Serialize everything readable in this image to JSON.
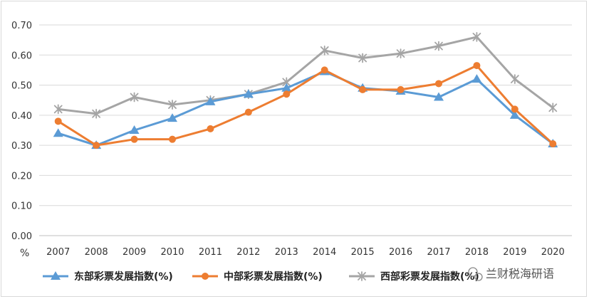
{
  "chart_data": {
    "type": "line",
    "title": "",
    "xlabel": "",
    "ylabel": "",
    "y_unit": "%",
    "x": [
      "2007",
      "2008",
      "2009",
      "2010",
      "2011",
      "2012",
      "2013",
      "2014",
      "2015",
      "2016",
      "2017",
      "2018",
      "2019",
      "2020"
    ],
    "ylim": [
      0,
      0.7
    ],
    "yticks": [
      "0.00",
      "0.10",
      "0.20",
      "0.30",
      "0.40",
      "0.50",
      "0.60",
      "0.70"
    ],
    "grid": true,
    "legend_position": "bottom",
    "series": [
      {
        "name": "东部彩票发展指数(%)",
        "color": "#5b9bd5",
        "marker": "triangle",
        "values": [
          0.34,
          0.3,
          0.35,
          0.39,
          0.445,
          0.47,
          0.49,
          0.545,
          0.49,
          0.48,
          0.46,
          0.52,
          0.4,
          0.305
        ]
      },
      {
        "name": "中部彩票发展指数(%)",
        "color": "#ed7d31",
        "marker": "circle",
        "values": [
          0.38,
          0.3,
          0.32,
          0.32,
          0.355,
          0.41,
          0.47,
          0.55,
          0.485,
          0.485,
          0.505,
          0.565,
          0.42,
          0.305
        ]
      },
      {
        "name": "西部彩票发展指数(%)",
        "color": "#a5a5a5",
        "marker": "star",
        "values": [
          0.42,
          0.405,
          0.46,
          0.435,
          0.45,
          0.47,
          0.51,
          0.615,
          0.59,
          0.605,
          0.63,
          0.66,
          0.52,
          0.425
        ]
      }
    ]
  },
  "watermark": {
    "text": "兰财税海研语",
    "icon": "wechat-icon"
  }
}
